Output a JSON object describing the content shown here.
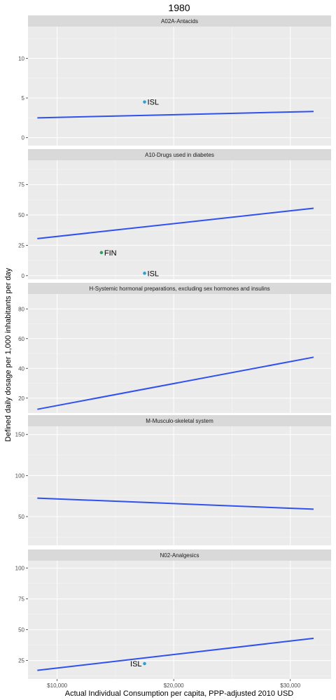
{
  "chart_data": {
    "type": "scatter",
    "title": "1980",
    "xlabel": "Actual Individual Consumption per capita, PPP-adjusted 2010 USD",
    "ylabel": "Defined daily dosage per 1,000 inhabitants per day",
    "xlim": [
      7500,
      33500
    ],
    "x_ticks": [
      10000,
      20000,
      30000
    ],
    "x_tick_labels": [
      "$10,000",
      "$20,000",
      "$30,000"
    ],
    "colors": {
      "trend": "#3050f0",
      "FIN": "#2ca25f",
      "ISL": "#2b9fd6"
    },
    "panels": [
      {
        "strip": "A02A-Antacids",
        "ylim": [
          -1,
          14
        ],
        "y_ticks": [
          0,
          5,
          10
        ],
        "points": [
          {
            "label": "ISL",
            "x": 17500,
            "y": 4.5,
            "label_side": "right"
          }
        ],
        "trend": [
          {
            "x": 8300,
            "y": 2.5
          },
          {
            "x": 32000,
            "y": 3.3
          }
        ]
      },
      {
        "strip": "A10-Drugs used in diabetes",
        "ylim": [
          -3,
          95
        ],
        "y_ticks": [
          0,
          25,
          50,
          75
        ],
        "points": [
          {
            "label": "FIN",
            "x": 13800,
            "y": 19,
            "label_side": "right"
          },
          {
            "label": "ISL",
            "x": 17500,
            "y": 2,
            "label_side": "right"
          }
        ],
        "trend": [
          {
            "x": 8300,
            "y": 30.5
          },
          {
            "x": 32000,
            "y": 55.5
          }
        ]
      },
      {
        "strip": "H-Systemic hormonal preparations, excluding sex hormones and insulins",
        "ylim": [
          10,
          90
        ],
        "y_ticks": [
          20,
          40,
          60,
          80
        ],
        "points": [],
        "trend": [
          {
            "x": 8300,
            "y": 12.5
          },
          {
            "x": 32000,
            "y": 47.5
          }
        ]
      },
      {
        "strip": "M-Musculo-skeletal system",
        "ylim": [
          15,
          160
        ],
        "y_ticks": [
          50,
          100,
          150
        ],
        "points": [],
        "trend": [
          {
            "x": 8300,
            "y": 72.5
          },
          {
            "x": 32000,
            "y": 59
          }
        ]
      },
      {
        "strip": "N02-Analgesics",
        "ylim": [
          10,
          106
        ],
        "y_ticks": [
          25,
          50,
          75,
          100
        ],
        "points": [
          {
            "label": "ISL",
            "x": 17500,
            "y": 22.5,
            "label_side": "left"
          }
        ],
        "trend": [
          {
            "x": 8300,
            "y": 17
          },
          {
            "x": 32000,
            "y": 43
          }
        ]
      }
    ]
  }
}
